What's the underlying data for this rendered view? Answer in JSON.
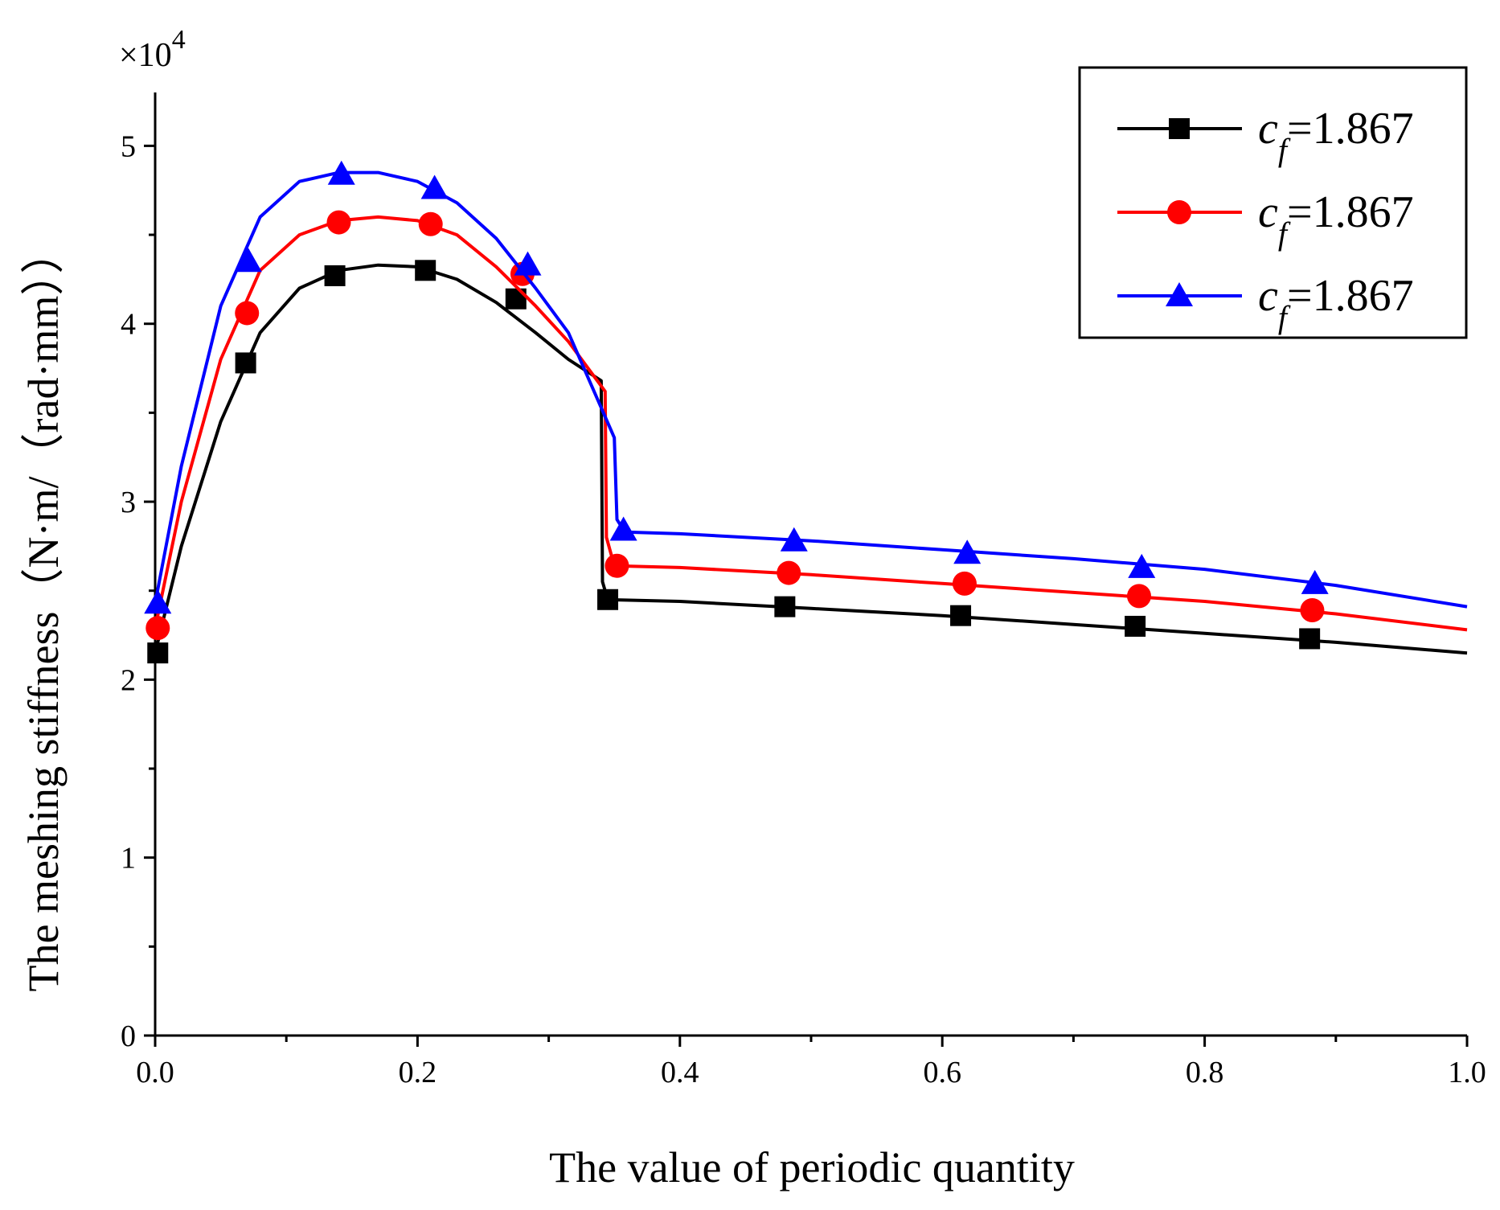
{
  "chart_data": {
    "type": "line",
    "xlabel": "The value of periodic quantity",
    "ylabel": "The meshing stiffness（N·m/（rad·mm））",
    "y_multiplier": "×10",
    "y_multiplier_exp": "4",
    "xlim": [
      0,
      1
    ],
    "ylim": [
      0,
      5.3
    ],
    "x_ticks": [
      "0.0",
      "0.2",
      "0.4",
      "0.6",
      "0.8",
      "1.0"
    ],
    "y_ticks": [
      "0",
      "1",
      "2",
      "3",
      "4",
      "5"
    ],
    "grid": false,
    "legend_position": "top-right",
    "series": [
      {
        "name_prefix": "c",
        "name_sub": "f",
        "name_suffix": "=1.867",
        "color": "#000000",
        "marker": "square",
        "x": [
          0.0,
          0.02,
          0.05,
          0.08,
          0.11,
          0.14,
          0.17,
          0.2,
          0.23,
          0.26,
          0.29,
          0.315,
          0.34,
          0.341,
          0.345,
          0.4,
          0.5,
          0.6,
          0.7,
          0.8,
          0.9,
          1.0
        ],
        "y": [
          2.15,
          2.75,
          3.45,
          3.95,
          4.2,
          4.3,
          4.33,
          4.32,
          4.25,
          4.12,
          3.95,
          3.8,
          3.68,
          2.55,
          2.45,
          2.44,
          2.4,
          2.36,
          2.31,
          2.26,
          2.21,
          2.15
        ],
        "markers_x": [
          0.002,
          0.069,
          0.137,
          0.206,
          0.275,
          0.345,
          0.48,
          0.614,
          0.747,
          0.88
        ],
        "markers_y": [
          2.15,
          3.78,
          4.27,
          4.3,
          4.14,
          2.45,
          2.41,
          2.36,
          2.3,
          2.23
        ]
      },
      {
        "name_prefix": "c",
        "name_sub": "f",
        "name_suffix": "=1.867",
        "color": "#ff0000",
        "marker": "circle",
        "x": [
          0.0,
          0.02,
          0.05,
          0.08,
          0.11,
          0.14,
          0.17,
          0.2,
          0.23,
          0.26,
          0.29,
          0.315,
          0.343,
          0.344,
          0.35,
          0.4,
          0.5,
          0.6,
          0.7,
          0.8,
          0.9,
          1.0
        ],
        "y": [
          2.29,
          3.0,
          3.8,
          4.3,
          4.5,
          4.58,
          4.6,
          4.58,
          4.5,
          4.32,
          4.1,
          3.9,
          3.62,
          2.8,
          2.64,
          2.63,
          2.59,
          2.54,
          2.49,
          2.44,
          2.37,
          2.28
        ],
        "markers_x": [
          0.002,
          0.07,
          0.14,
          0.21,
          0.28,
          0.352,
          0.483,
          0.617,
          0.75,
          0.882
        ],
        "markers_y": [
          2.29,
          4.06,
          4.57,
          4.56,
          4.28,
          2.64,
          2.6,
          2.54,
          2.47,
          2.39
        ]
      },
      {
        "name_prefix": "c",
        "name_sub": "f",
        "name_suffix": "=1.867",
        "color": "#0000ff",
        "marker": "triangle",
        "x": [
          0.0,
          0.02,
          0.05,
          0.08,
          0.11,
          0.14,
          0.17,
          0.2,
          0.23,
          0.26,
          0.29,
          0.315,
          0.35,
          0.352,
          0.358,
          0.4,
          0.5,
          0.6,
          0.7,
          0.8,
          0.9,
          1.0
        ],
        "y": [
          2.43,
          3.2,
          4.1,
          4.6,
          4.8,
          4.85,
          4.85,
          4.8,
          4.68,
          4.48,
          4.2,
          3.95,
          3.36,
          2.9,
          2.83,
          2.82,
          2.78,
          2.73,
          2.68,
          2.62,
          2.53,
          2.41
        ],
        "markers_x": [
          0.002,
          0.071,
          0.142,
          0.213,
          0.284,
          0.357,
          0.487,
          0.619,
          0.752,
          0.884
        ],
        "markers_y": [
          2.43,
          4.35,
          4.84,
          4.76,
          4.33,
          2.84,
          2.78,
          2.71,
          2.63,
          2.54
        ]
      }
    ]
  }
}
